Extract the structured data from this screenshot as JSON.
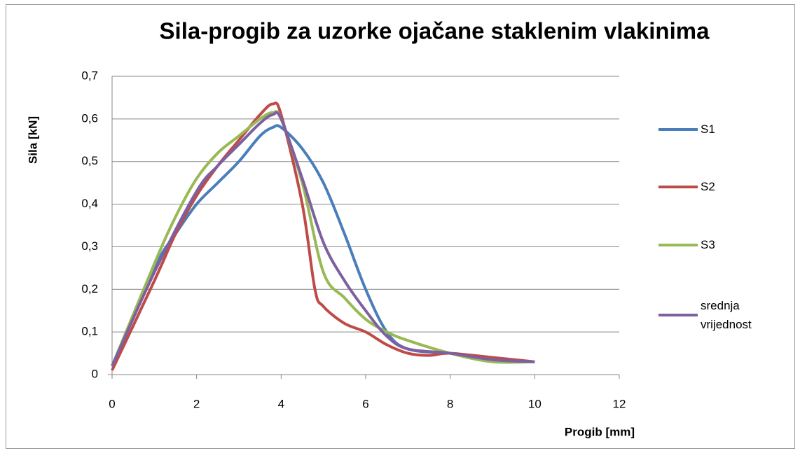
{
  "chart_data": {
    "type": "line",
    "title": "Sila-progib za uzorke ojačane staklenim vlakinima",
    "x_label": "Progib [mm]",
    "y_label": "Sila [kN]",
    "xlim": [
      0,
      12
    ],
    "xticks": [
      0,
      2,
      4,
      6,
      8,
      10,
      12
    ],
    "ylim": [
      0,
      0.7
    ],
    "yticks": [
      0,
      {
        "value": 0.1,
        "label": "0,1"
      },
      {
        "value": 0.2,
        "label": "0,2"
      },
      {
        "value": 0.3,
        "label": "0,3"
      },
      {
        "value": 0.4,
        "label": "0,4"
      },
      {
        "value": 0.5,
        "label": "0,5"
      },
      {
        "value": 0.6,
        "label": "0,6"
      },
      {
        "value": 0.7,
        "label": "0,7"
      }
    ],
    "grid": true,
    "legend": "right",
    "series": [
      {
        "name": "S1",
        "color": "#4a7ebb",
        "x": [
          0,
          1,
          1.5,
          2,
          2.5,
          3,
          3.5,
          3.8,
          4,
          4.5,
          5,
          5.5,
          6,
          6.5,
          7,
          8,
          9,
          10
        ],
        "values": [
          0.02,
          0.25,
          0.33,
          0.4,
          0.45,
          0.5,
          0.56,
          0.58,
          0.58,
          0.53,
          0.45,
          0.33,
          0.2,
          0.1,
          0.06,
          0.05,
          0.04,
          0.03
        ]
      },
      {
        "name": "S2",
        "color": "#be4b48",
        "x": [
          0,
          1,
          1.5,
          2,
          2.5,
          3,
          3.5,
          3.8,
          4,
          4.5,
          4.8,
          5,
          5.5,
          6,
          6.5,
          7,
          7.5,
          8,
          9,
          10
        ],
        "values": [
          0.01,
          0.22,
          0.33,
          0.42,
          0.49,
          0.55,
          0.61,
          0.635,
          0.61,
          0.4,
          0.2,
          0.16,
          0.12,
          0.1,
          0.07,
          0.05,
          0.045,
          0.05,
          0.04,
          0.03
        ]
      },
      {
        "name": "S3",
        "color": "#98b954",
        "x": [
          0,
          1,
          1.5,
          2,
          2.5,
          3,
          3.5,
          3.8,
          4,
          4.5,
          5,
          5.5,
          6,
          6.5,
          7,
          8,
          9,
          10
        ],
        "values": [
          0.02,
          0.26,
          0.37,
          0.46,
          0.52,
          0.56,
          0.6,
          0.615,
          0.6,
          0.45,
          0.24,
          0.18,
          0.13,
          0.1,
          0.08,
          0.05,
          0.03,
          0.03
        ]
      },
      {
        "name": "srednja vrijednost",
        "color": "#7d60a0",
        "x": [
          0,
          1,
          2,
          2.5,
          3,
          3.5,
          3.8,
          4,
          4.5,
          5,
          5.5,
          6,
          6.5,
          7,
          8,
          9,
          10
        ],
        "values": [
          0.02,
          0.24,
          0.43,
          0.49,
          0.54,
          0.59,
          0.61,
          0.6,
          0.46,
          0.31,
          0.22,
          0.15,
          0.09,
          0.06,
          0.05,
          0.035,
          0.03
        ]
      }
    ]
  }
}
